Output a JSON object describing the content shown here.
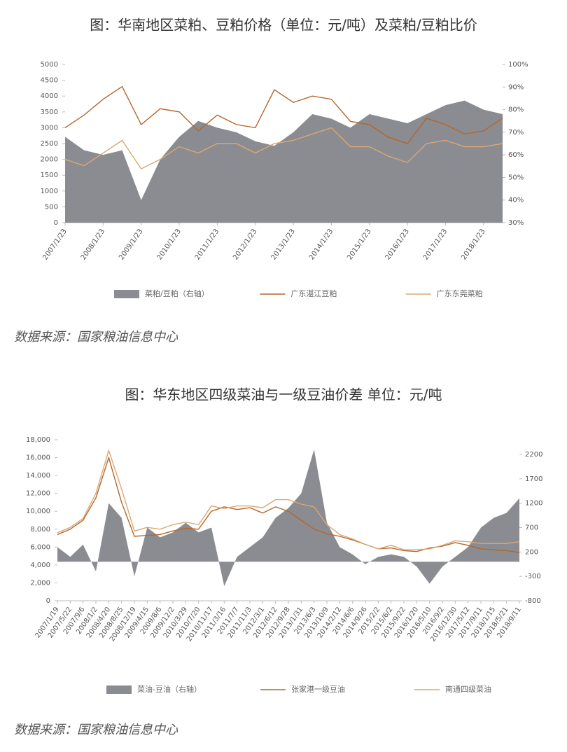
{
  "chart_data": [
    {
      "type": "line",
      "title": "图：华南地区菜粕、豆粕价格（单位：元/吨）及菜粕/豆粕比价",
      "categories": [
        "2007/1/23",
        null,
        "2008/1/23",
        null,
        "2009/1/23",
        null,
        "2010/1/23",
        null,
        "2011/1/23",
        null,
        "2012/1/23",
        null,
        "2013/1/23",
        null,
        "2014/1/23",
        null,
        "2015/1/23",
        null,
        "2016/1/23",
        null,
        "2017/1/23",
        null,
        "2018/1/23",
        null
      ],
      "series": [
        {
          "name": "菜粕/豆粕（右轴）",
          "color": "#8a8c91",
          "axis": "y2",
          "values": [
            68,
            62,
            60,
            62,
            40,
            58,
            68,
            75,
            72,
            70,
            66,
            64,
            70,
            78,
            76,
            72,
            78,
            76,
            74,
            78,
            82,
            84,
            80,
            78
          ]
        },
        {
          "name": "广东湛江豆粕",
          "color": "#b5652a",
          "values": [
            3000,
            3400,
            3900,
            4300,
            3100,
            3600,
            3500,
            2900,
            3400,
            3100,
            3000,
            4200,
            3800,
            4000,
            3900,
            3200,
            3100,
            2700,
            2500,
            3300,
            3100,
            2800,
            2900,
            3300
          ]
        },
        {
          "name": "广东东莞菜粕",
          "color": "#dba772",
          "values": [
            2000,
            1800,
            2200,
            2600,
            1700,
            2000,
            2400,
            2200,
            2500,
            2500,
            2200,
            2500,
            2600,
            2800,
            3000,
            2400,
            2400,
            2100,
            1900,
            2500,
            2600,
            2400,
            2400,
            2500
          ]
        }
      ],
      "ylim": [
        0,
        5000
      ],
      "yticks": [
        0,
        500,
        1000,
        1500,
        2000,
        2500,
        3000,
        3500,
        4000,
        4500,
        5000
      ],
      "y2lim": [
        30,
        100
      ],
      "y2ticks": [
        {
          "value": 30,
          "label": "30%"
        },
        {
          "value": 40,
          "label": "40%"
        },
        {
          "value": 50,
          "label": "50%"
        },
        {
          "value": 60,
          "label": "60%"
        },
        {
          "value": 70,
          "label": "70%"
        },
        {
          "value": 80,
          "label": "80%"
        },
        {
          "value": 90,
          "label": "90%"
        },
        {
          "value": 100,
          "label": "100%"
        }
      ],
      "source": "数据来源：国家粮油信息中心"
    },
    {
      "type": "line",
      "title": "图：华东地区四级菜油与一级豆油价差 单位：元/吨",
      "categories": [
        "2007/1/19",
        "2007/5/22",
        "2007/9/6",
        "2008/1/2",
        "2008/4/20",
        "2008/8/25",
        "2008/12/19",
        "2009/4/15",
        "2009/8/6",
        "2009/12/2",
        "2010/3/29",
        "2010/7/20",
        "2010/11/17",
        "2011/3/16",
        "2011/7/7",
        "2011/11/3",
        "2012/3/1",
        "2012/6/12",
        "2012/9/28",
        "2013/1/31",
        "2013/6/3",
        "2013/10/9",
        "2014/2/12",
        "2014/6/6",
        "2014/9/26",
        "2015/2/2",
        "2015/6/2",
        "2015/9/22",
        "2016/1/20",
        "2016/5/10",
        "2016/9/2",
        "2016/12/30",
        "2017/5/12",
        "2017/9/11",
        "2018/1/15",
        "2018/5/21",
        "2018/9/11"
      ],
      "series": [
        {
          "name": "菜油-豆油（右轴）",
          "color": "#8a8c91",
          "axis": "y2",
          "values": [
            300,
            100,
            350,
            -200,
            1200,
            900,
            -300,
            700,
            500,
            600,
            800,
            600,
            700,
            -500,
            100,
            300,
            500,
            900,
            1100,
            1400,
            2300,
            800,
            300,
            150,
            -50,
            100,
            150,
            100,
            -100,
            -450,
            -100,
            100,
            300,
            700,
            900,
            1000,
            1300
          ]
        },
        {
          "name": "张家港一级豆油",
          "color": "#b5652a",
          "values": [
            7400,
            8000,
            9000,
            11500,
            16000,
            11000,
            7200,
            7300,
            7400,
            7800,
            8100,
            8000,
            10000,
            10500,
            10200,
            10400,
            9800,
            10500,
            10000,
            9000,
            8000,
            7500,
            7200,
            6800,
            6300,
            5800,
            5900,
            5600,
            5500,
            5900,
            6100,
            6500,
            6200,
            5800,
            5700,
            5600,
            5400
          ]
        },
        {
          "name": "南通四级菜油",
          "color": "#dba772",
          "values": [
            7600,
            8200,
            9200,
            12000,
            16800,
            12500,
            7800,
            8200,
            8000,
            8500,
            8800,
            8500,
            10600,
            10300,
            10600,
            10600,
            10400,
            11300,
            11300,
            10800,
            10500,
            8500,
            7400,
            6900,
            6300,
            5800,
            6200,
            5700,
            5700,
            5800,
            6200,
            6700,
            6600,
            6400,
            6400,
            6400,
            6600
          ]
        }
      ],
      "ylim": [
        0,
        18000
      ],
      "yticks": [
        {
          "value": 0,
          "label": "0"
        },
        {
          "value": 2000,
          "label": "2,000"
        },
        {
          "value": 4000,
          "label": "4,000"
        },
        {
          "value": 6000,
          "label": "6,000"
        },
        {
          "value": 8000,
          "label": "8,000"
        },
        {
          "value": 10000,
          "label": "10,000"
        },
        {
          "value": 12000,
          "label": "12,000"
        },
        {
          "value": 14000,
          "label": "14,000"
        },
        {
          "value": 16000,
          "label": "16,000"
        },
        {
          "value": 18000,
          "label": "18,000"
        }
      ],
      "y2lim": [
        -800,
        2500
      ],
      "y2ticks": [
        -800,
        -300,
        200,
        700,
        1200,
        1700,
        2200
      ],
      "source": "数据来源：国家粮油信息中心"
    }
  ]
}
